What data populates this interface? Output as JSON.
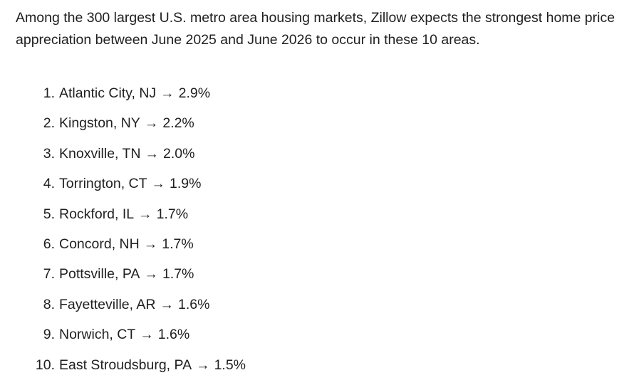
{
  "intro": "Among the 300 largest U.S. metro area housing markets, Zillow expects the strongest home price appreciation between June 2025 and June 2026 to occur in these 10 areas.",
  "arrow": "→",
  "items": [
    {
      "rank": "1.",
      "metro": "Atlantic City, NJ",
      "value": "2.9%"
    },
    {
      "rank": "2.",
      "metro": "Kingston, NY",
      "value": "2.2%"
    },
    {
      "rank": "3.",
      "metro": "Knoxville, TN",
      "value": "2.0%"
    },
    {
      "rank": "4.",
      "metro": "Torrington, CT",
      "value": "1.9%"
    },
    {
      "rank": "5.",
      "metro": "Rockford, IL",
      "value": "1.7%"
    },
    {
      "rank": "6.",
      "metro": "Concord, NH",
      "value": "1.7%"
    },
    {
      "rank": "7.",
      "metro": "Pottsville, PA",
      "value": "1.7%"
    },
    {
      "rank": "8.",
      "metro": "Fayetteville, AR",
      "value": "1.6%"
    },
    {
      "rank": "9.",
      "metro": "Norwich, CT",
      "value": "1.6%"
    },
    {
      "rank": "10.",
      "metro": "East Stroudsburg, PA",
      "value": "1.5%"
    }
  ]
}
